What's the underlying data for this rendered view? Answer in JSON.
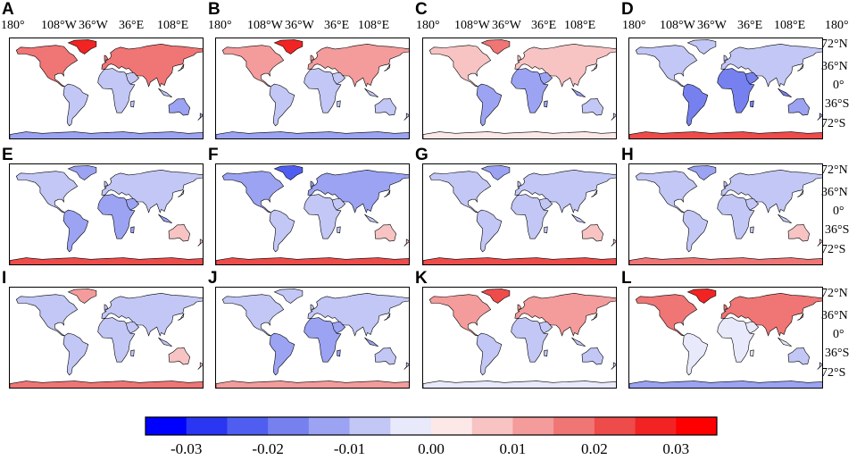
{
  "panels": [
    {
      "letter": "A",
      "nh": 0.015,
      "trop": -0.008,
      "south": -0.012,
      "ant": -0.015,
      "gl": 0.03
    },
    {
      "letter": "B",
      "nh": 0.012,
      "trop": -0.006,
      "south": -0.01,
      "ant": -0.012,
      "gl": 0.025
    },
    {
      "letter": "C",
      "nh": 0.008,
      "trop": -0.012,
      "south": -0.008,
      "ant": 0.003,
      "gl": 0.015
    },
    {
      "letter": "D",
      "nh": -0.01,
      "trop": -0.018,
      "south": -0.012,
      "ant": 0.02,
      "gl": -0.008
    },
    {
      "letter": "E",
      "nh": -0.008,
      "trop": -0.012,
      "south": 0.008,
      "ant": 0.022,
      "gl": -0.012
    },
    {
      "letter": "F",
      "nh": -0.012,
      "trop": -0.01,
      "south": 0.006,
      "ant": 0.02,
      "gl": -0.025
    },
    {
      "letter": "G",
      "nh": -0.01,
      "trop": -0.01,
      "south": 0.006,
      "ant": 0.02,
      "gl": -0.015
    },
    {
      "letter": "H",
      "nh": -0.01,
      "trop": -0.01,
      "south": 0.006,
      "ant": 0.018,
      "gl": -0.012
    },
    {
      "letter": "I",
      "nh": -0.008,
      "trop": -0.01,
      "south": 0.006,
      "ant": 0.016,
      "gl": 0.01
    },
    {
      "letter": "J",
      "nh": -0.01,
      "trop": -0.014,
      "south": -0.006,
      "ant": 0.014,
      "gl": -0.008
    },
    {
      "letter": "K",
      "nh": 0.01,
      "trop": -0.01,
      "south": -0.006,
      "ant": -0.004,
      "gl": 0.02
    },
    {
      "letter": "L",
      "nh": 0.018,
      "trop": -0.004,
      "south": -0.006,
      "ant": -0.012,
      "gl": 0.03
    }
  ],
  "lon_labels": [
    "180°",
    "108°W",
    "36°W",
    "36°E",
    "108°E",
    "180°"
  ],
  "lat_labels": [
    "72°N",
    "36°N",
    "0°",
    "36°S",
    "72°S"
  ],
  "colorbar": {
    "ticks": [
      "-0.03",
      "-0.02",
      "-0.01",
      "0.00",
      "0.01",
      "0.02",
      "0.03"
    ],
    "range": [
      -0.035,
      0.035
    ],
    "colors": [
      "#0000ff",
      "#2a36f2",
      "#4f5ef0",
      "#7681ef",
      "#9ba3f2",
      "#c3c7f5",
      "#e8e9fa",
      "#fde8e8",
      "#f7c3c3",
      "#f49b9b",
      "#f07575",
      "#ee4b4b",
      "#f22323",
      "#ff0000"
    ]
  }
}
